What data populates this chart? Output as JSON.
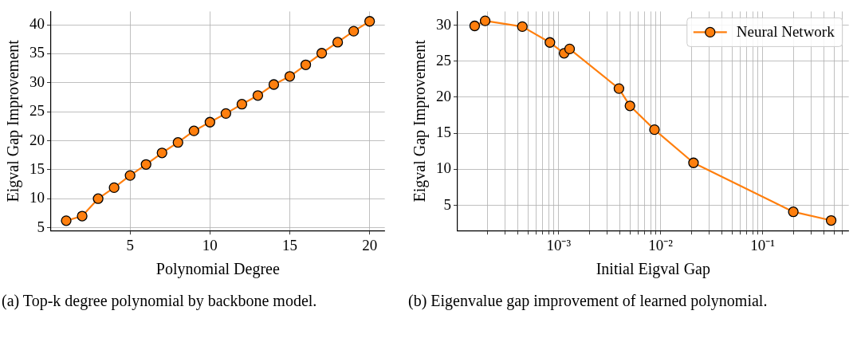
{
  "chart_data": [
    {
      "type": "line",
      "xlabel": "Polynomial Degree",
      "ylabel": "Eigval Gap Improvement",
      "x": [
        1,
        2,
        3,
        4,
        5,
        6,
        7,
        8,
        9,
        10,
        11,
        12,
        13,
        14,
        15,
        16,
        17,
        18,
        19,
        20
      ],
      "series": [
        {
          "color": "#ff7f0e",
          "values": [
            6.2,
            7.0,
            10.0,
            11.9,
            14.0,
            15.9,
            17.9,
            19.7,
            21.7,
            23.2,
            24.7,
            26.3,
            27.8,
            29.7,
            31.1,
            33.1,
            35.1,
            37.0,
            38.9,
            40.6
          ]
        }
      ],
      "xlim": [
        0.05,
        20.95
      ],
      "ylim": [
        4.5,
        42.3
      ],
      "xticks": [
        5,
        10,
        15,
        20
      ],
      "yticks": [
        5,
        10,
        15,
        20,
        25,
        30,
        35,
        40
      ],
      "grid": true,
      "marker": "circle",
      "legend": false,
      "annotations": [
        "(a) Top-k degree polynomial by backbone model."
      ]
    },
    {
      "type": "line",
      "xlabel": "Initial Eigval Gap",
      "ylabel": "Eigval Gap Improvement",
      "x": [
        0.00015,
        0.00019,
        0.00044,
        0.00082,
        0.00113,
        0.00128,
        0.0039,
        0.005,
        0.0087,
        0.021,
        0.2,
        0.47
      ],
      "series": [
        {
          "name": "Neural Network",
          "color": "#ff7f0e",
          "values": [
            29.9,
            30.6,
            29.8,
            27.6,
            26.1,
            26.7,
            21.2,
            18.8,
            15.5,
            10.9,
            4.1,
            2.9
          ]
        }
      ],
      "xlim": [
        0.000102,
        0.7
      ],
      "ylim": [
        1.5,
        31.9
      ],
      "log": "x",
      "xticks": [
        {
          "value": 0.0002,
          "label": null
        },
        {
          "value": 0.0003,
          "label": null
        },
        {
          "value": 0.0004,
          "label": null
        },
        {
          "value": 0.0005,
          "label": null
        },
        {
          "value": 0.0006,
          "label": null
        },
        {
          "value": 0.0007,
          "label": null
        },
        {
          "value": 0.0008,
          "label": null
        },
        {
          "value": 0.0009,
          "label": null
        },
        {
          "value": 0.001,
          "label": "10⁻³"
        },
        {
          "value": 0.002,
          "label": null
        },
        {
          "value": 0.003,
          "label": null
        },
        {
          "value": 0.004,
          "label": null
        },
        {
          "value": 0.005,
          "label": null
        },
        {
          "value": 0.006,
          "label": null
        },
        {
          "value": 0.007,
          "label": null
        },
        {
          "value": 0.008,
          "label": null
        },
        {
          "value": 0.009,
          "label": null
        },
        {
          "value": 0.01,
          "label": "10⁻²"
        },
        {
          "value": 0.02,
          "label": null
        },
        {
          "value": 0.03,
          "label": null
        },
        {
          "value": 0.04,
          "label": null
        },
        {
          "value": 0.05,
          "label": null
        },
        {
          "value": 0.06,
          "label": null
        },
        {
          "value": 0.07,
          "label": null
        },
        {
          "value": 0.08,
          "label": null
        },
        {
          "value": 0.09,
          "label": null
        },
        {
          "value": 0.1,
          "label": "10⁻¹"
        },
        {
          "value": 0.2,
          "label": null
        },
        {
          "value": 0.3,
          "label": null
        },
        {
          "value": 0.4,
          "label": null
        },
        {
          "value": 0.5,
          "label": null
        },
        {
          "value": 0.6,
          "label": null
        }
      ],
      "yticks": [
        5,
        10,
        15,
        20,
        25,
        30
      ],
      "grid": true,
      "marker": "circle",
      "legend": "top right",
      "annotations": [
        "(b) Eigenvalue gap improvement of learned polynomial."
      ]
    }
  ]
}
